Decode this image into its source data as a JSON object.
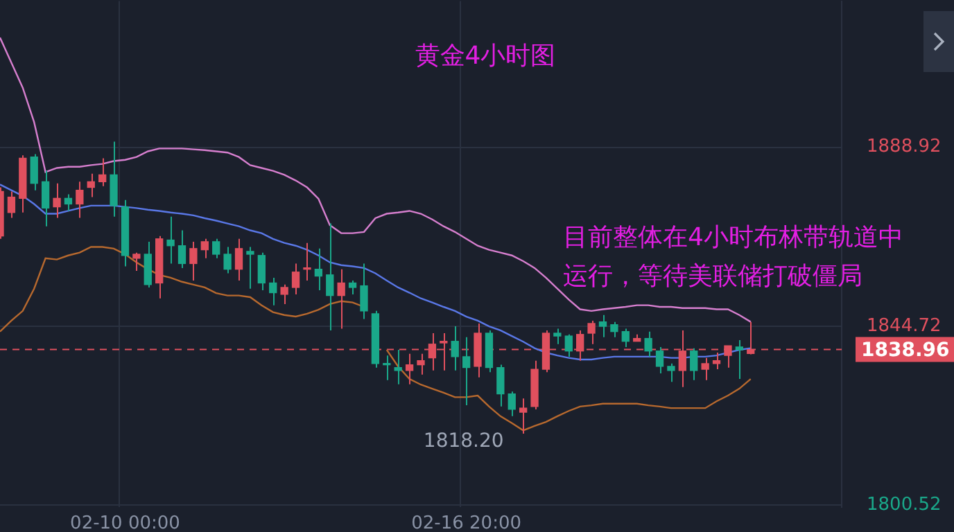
{
  "chart_data": {
    "type": "candlestick",
    "title": "黄金4小时图",
    "categories": [
      null,
      null,
      null,
      null,
      null,
      null,
      null,
      null,
      null,
      null,
      null,
      "02-10 00:00",
      null,
      null,
      null,
      null,
      null,
      null,
      null,
      null,
      null,
      null,
      null,
      null,
      null,
      null,
      null,
      null,
      null,
      null,
      null,
      null,
      null,
      null,
      null,
      null,
      null,
      null,
      null,
      null,
      null,
      "02-16 20:00",
      null,
      null,
      null,
      null,
      null,
      null,
      null,
      null,
      null,
      null,
      null,
      null,
      null,
      null,
      null,
      null,
      null,
      null,
      null,
      null,
      null,
      null,
      null,
      null,
      null,
      null,
      null,
      null,
      null,
      null,
      null,
      null,
      null
    ],
    "ohlc": [
      [
        1867.0,
        1879.0,
        1866.3,
        1878.0
      ],
      [
        1872.8,
        1878.0,
        1871.5,
        1876.6
      ],
      [
        1876.3,
        1886.9,
        1872.8,
        1886.2
      ],
      [
        1886.5,
        1887.2,
        1878.3,
        1880.0
      ],
      [
        1880.4,
        1883.1,
        1869.4,
        1873.9
      ],
      [
        1874.2,
        1880.0,
        1871.5,
        1876.3
      ],
      [
        1876.3,
        1877.3,
        1873.2,
        1874.9
      ],
      [
        1874.9,
        1880.4,
        1871.5,
        1878.3
      ],
      [
        1879.0,
        1882.4,
        1876.6,
        1880.4
      ],
      [
        1880.4,
        1886.2,
        1879.3,
        1882.1
      ],
      [
        1882.1,
        1890.3,
        1871.8,
        1874.5
      ],
      [
        1874.2,
        1875.9,
        1859.5,
        1862.2
      ],
      [
        1861.5,
        1862.9,
        1858.4,
        1862.5
      ],
      [
        1862.5,
        1865.6,
        1854.3,
        1855.0
      ],
      [
        1855.4,
        1867.0,
        1851.6,
        1866.3
      ],
      [
        1866.0,
        1871.8,
        1860.2,
        1864.6
      ],
      [
        1864.6,
        1868.4,
        1859.1,
        1860.2
      ],
      [
        1860.2,
        1865.6,
        1856.0,
        1863.9
      ],
      [
        1863.6,
        1866.3,
        1861.5,
        1865.6
      ],
      [
        1865.6,
        1866.3,
        1861.5,
        1862.5
      ],
      [
        1862.5,
        1864.3,
        1857.8,
        1858.8
      ],
      [
        1858.8,
        1866.3,
        1856.0,
        1863.9
      ],
      [
        1863.2,
        1864.3,
        1854.0,
        1862.5
      ],
      [
        1862.2,
        1862.9,
        1853.6,
        1855.4
      ],
      [
        1855.4,
        1856.7,
        1849.9,
        1853.0
      ],
      [
        1852.6,
        1855.0,
        1850.2,
        1854.3
      ],
      [
        1854.3,
        1860.2,
        1852.6,
        1858.1
      ],
      [
        1858.8,
        1865.3,
        1856.0,
        1859.1
      ],
      [
        1858.8,
        1863.9,
        1853.6,
        1857.1
      ],
      [
        1857.4,
        1870.1,
        1843.7,
        1852.3
      ],
      [
        1852.3,
        1858.8,
        1844.1,
        1855.4
      ],
      [
        1855.4,
        1856.0,
        1852.6,
        1854.3
      ],
      [
        1854.7,
        1860.2,
        1846.5,
        1848.5
      ],
      [
        1847.8,
        1848.5,
        1834.5,
        1835.5
      ],
      [
        1835.5,
        1837.5,
        1831.4,
        1835.2
      ],
      [
        1834.5,
        1838.9,
        1830.4,
        1833.8
      ],
      [
        1833.8,
        1837.9,
        1830.4,
        1835.2
      ],
      [
        1835.2,
        1837.9,
        1832.8,
        1836.2
      ],
      [
        1836.9,
        1843.0,
        1833.8,
        1840.3
      ],
      [
        1840.6,
        1843.0,
        1833.8,
        1841.0
      ],
      [
        1841.0,
        1844.7,
        1833.8,
        1837.2
      ],
      [
        1837.2,
        1842.0,
        1825.2,
        1834.5
      ],
      [
        1834.8,
        1845.4,
        1832.1,
        1843.0
      ],
      [
        1843.0,
        1843.7,
        1833.4,
        1834.5
      ],
      [
        1834.5,
        1835.2,
        1824.9,
        1828.0
      ],
      [
        1828.0,
        1828.6,
        1822.5,
        1824.2
      ],
      [
        1823.5,
        1826.9,
        1818.2,
        1824.5
      ],
      [
        1824.9,
        1836.2,
        1824.2,
        1834.1
      ],
      [
        1834.1,
        1843.7,
        1833.4,
        1843.0
      ],
      [
        1843.0,
        1844.1,
        1840.3,
        1842.3
      ],
      [
        1842.3,
        1842.7,
        1837.2,
        1838.6
      ],
      [
        1838.6,
        1843.7,
        1836.2,
        1842.7
      ],
      [
        1843.0,
        1846.1,
        1840.3,
        1845.4
      ],
      [
        1845.8,
        1847.5,
        1842.0,
        1844.7
      ],
      [
        1845.1,
        1845.8,
        1842.0,
        1843.4
      ],
      [
        1843.4,
        1844.1,
        1839.6,
        1841.0
      ],
      [
        1841.0,
        1842.7,
        1841.0,
        1841.7
      ],
      [
        1841.7,
        1843.4,
        1837.2,
        1838.6
      ],
      [
        1838.6,
        1839.6,
        1833.1,
        1834.8
      ],
      [
        1834.8,
        1835.5,
        1831.0,
        1833.8
      ],
      [
        1833.8,
        1843.7,
        1829.7,
        1838.6
      ],
      [
        1838.6,
        1839.3,
        1831.4,
        1833.8
      ],
      [
        1834.1,
        1836.9,
        1831.4,
        1835.5
      ],
      [
        1835.5,
        1838.2,
        1834.1,
        1836.2
      ],
      [
        1837.5,
        1839.9,
        1834.5,
        1839.9
      ],
      [
        1839.6,
        1841.3,
        1831.7,
        1838.9
      ],
      [
        1838.0,
        1845.8,
        1837.8,
        1838.96
      ],
      null,
      null,
      null,
      null,
      null,
      null,
      null,
      null
    ],
    "colors": [
      "#e0505e",
      "#e0505e",
      "#e0505e",
      "#1aa88a",
      "#1aa88a",
      "#e0505e",
      "#1aa88a",
      "#e0505e",
      "#e0505e",
      "#e0505e",
      "#1aa88a",
      "#1aa88a",
      "#e0505e",
      "#1aa88a",
      "#e0505e",
      "#1aa88a",
      "#1aa88a",
      "#e0505e",
      "#e0505e",
      "#1aa88a",
      "#1aa88a",
      "#e0505e",
      "#1aa88a",
      "#1aa88a",
      "#1aa88a",
      "#e0505e",
      "#e0505e",
      "#e0505e",
      "#1aa88a",
      "#1aa88a",
      "#e0505e",
      "#1aa88a",
      "#1aa88a",
      "#1aa88a",
      "#1aa88a",
      "#1aa88a",
      "#e0505e",
      "#e0505e",
      "#e0505e",
      "#e0505e",
      "#1aa88a",
      "#1aa88a",
      "#e0505e",
      "#1aa88a",
      "#1aa88a",
      "#1aa88a",
      "#e0505e",
      "#e0505e",
      "#e0505e",
      "#1aa88a",
      "#1aa88a",
      "#e0505e",
      "#e0505e",
      "#1aa88a",
      "#1aa88a",
      "#1aa88a",
      "#e0505e",
      "#1aa88a",
      "#1aa88a",
      "#1aa88a",
      "#e0505e",
      "#1aa88a",
      "#e0505e",
      "#e0505e",
      "#e0505e",
      "#1aa88a",
      "#e0505e",
      null,
      null,
      null,
      null,
      null,
      null,
      null,
      null
    ],
    "series": [
      {
        "type": "line",
        "color": "#d77fcf",
        "values": [
          1916.0,
          1909.8,
          1903.6,
          1895.1,
          1882.8,
          1883.8,
          1884.1,
          1884.1,
          1884.5,
          1884.8,
          1885.5,
          1885.8,
          1886.5,
          1887.9,
          1888.6,
          1888.6,
          1888.6,
          1888.4,
          1888.2,
          1887.9,
          1887.6,
          1886.5,
          1884.5,
          1883.8,
          1883.1,
          1882.1,
          1880.7,
          1879.0,
          1876.2,
          1869.7,
          1867.7,
          1867.7,
          1868.0,
          1871.4,
          1872.5,
          1872.8,
          1873.2,
          1872.5,
          1871.1,
          1869.4,
          1868.0,
          1866.3,
          1864.6,
          1863.6,
          1862.9,
          1862.2,
          1860.8,
          1859.1,
          1856.7,
          1854.0,
          1851.3,
          1848.9,
          1848.5,
          1848.9,
          1849.2,
          1849.5,
          1849.9,
          1849.9,
          1849.5,
          1849.5,
          1849.2,
          1849.2,
          1849.2,
          1848.9,
          1848.9,
          1847.5,
          1845.8,
          null,
          null,
          null,
          null,
          null,
          null,
          null,
          null
        ]
      },
      {
        "type": "line",
        "color": "#5a78e8",
        "values": [
          1879.7,
          1878.3,
          1876.9,
          1874.9,
          1872.5,
          1872.5,
          1873.2,
          1873.9,
          1874.5,
          1874.5,
          1874.5,
          1874.2,
          1873.9,
          1873.5,
          1873.2,
          1872.8,
          1872.5,
          1872.1,
          1871.4,
          1870.8,
          1870.1,
          1869.4,
          1868.4,
          1867.7,
          1866.3,
          1865.3,
          1864.6,
          1863.6,
          1862.2,
          1860.5,
          1859.8,
          1859.5,
          1859.1,
          1857.8,
          1856.0,
          1854.3,
          1853.0,
          1851.6,
          1850.6,
          1849.5,
          1848.5,
          1847.1,
          1846.1,
          1844.7,
          1843.7,
          1842.3,
          1840.9,
          1839.3,
          1838.2,
          1837.5,
          1836.9,
          1836.5,
          1836.5,
          1836.9,
          1837.2,
          1837.2,
          1837.2,
          1837.2,
          1837.2,
          1836.9,
          1836.9,
          1837.2,
          1837.2,
          1837.5,
          1838.2,
          1838.9,
          1839.3,
          null,
          null,
          null,
          null,
          null,
          null,
          null,
          null
        ]
      },
      {
        "type": "line",
        "color": "#b8692e",
        "values": [
          1843.4,
          1846.1,
          1848.5,
          1854.0,
          1861.5,
          1861.2,
          1862.2,
          1862.9,
          1864.3,
          1864.3,
          1863.9,
          1862.5,
          1860.5,
          1858.8,
          1857.4,
          1856.7,
          1855.7,
          1855.0,
          1854.3,
          1852.9,
          1852.3,
          1852.3,
          1851.9,
          1849.9,
          1848.2,
          1847.5,
          1847.1,
          1847.8,
          1848.8,
          1850.2,
          1850.9,
          1850.6,
          1849.5,
          null,
          1838.9,
          1834.8,
          1831.7,
          1830.3,
          1829.3,
          1828.3,
          1827.2,
          1827.2,
          1827.6,
          1824.9,
          1822.5,
          1820.8,
          1819.0,
          1820.1,
          1821.1,
          1822.5,
          1823.8,
          1824.9,
          1825.2,
          1825.6,
          1825.6,
          1825.6,
          1825.6,
          1825.2,
          1824.9,
          1824.5,
          1824.5,
          1824.5,
          1824.5,
          1826.2,
          1827.6,
          1829.3,
          1831.7,
          null,
          null,
          null,
          null,
          null,
          null,
          null,
          null
        ]
      }
    ],
    "ylim": [
      1800,
      1925
    ],
    "yticks": [
      1800.52,
      1844.72,
      1888.92
    ],
    "grid": true,
    "legend": false,
    "ref_lines": [
      {
        "axis": "y",
        "value": 1838.96,
        "label": "1838.96",
        "color": "#e0505e",
        "line_style": "dashed"
      }
    ],
    "annotations": [
      "1818.20",
      "目前整体在4小时布林带轨道中运行，等待美联储打破僵局"
    ]
  }
}
